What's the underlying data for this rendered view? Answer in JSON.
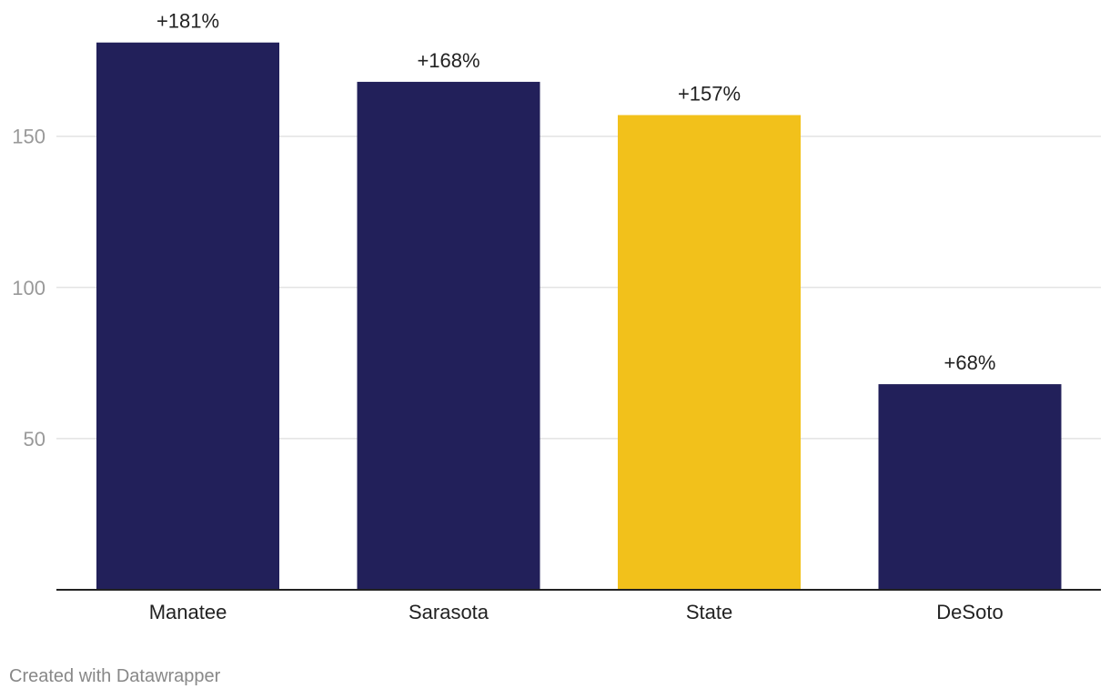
{
  "chart_data": {
    "type": "bar",
    "categories": [
      "Manatee",
      "Sarasota",
      "State",
      "DeSoto"
    ],
    "values": [
      181,
      168,
      157,
      68
    ],
    "value_labels": [
      "+181%",
      "+168%",
      "+157%",
      "+68%"
    ],
    "highlight_category": "State",
    "ylim": [
      0,
      190
    ],
    "y_ticks": [
      50,
      100,
      150
    ],
    "grid": true,
    "colors": {
      "bar": "#22205a",
      "highlight": "#f2c11b",
      "grid": "#e3e3e3",
      "axis": "#222222",
      "tick_text": "#999999",
      "label_text": "#222222"
    }
  },
  "footer": {
    "credit": "Created with Datawrapper"
  }
}
